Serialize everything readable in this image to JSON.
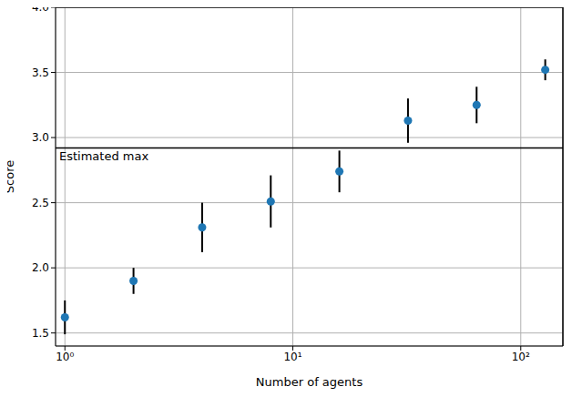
{
  "chart_data": {
    "type": "scatter",
    "x_label": "Number of agents",
    "y_label": "Score",
    "x": [
      1,
      2,
      4,
      8,
      16,
      32,
      64,
      128
    ],
    "values": [
      1.62,
      1.9,
      2.31,
      2.51,
      2.74,
      3.13,
      3.25,
      3.52
    ],
    "errors": [
      0.13,
      0.1,
      0.19,
      0.2,
      0.16,
      0.17,
      0.14,
      0.08
    ],
    "color": "#1f77b4",
    "marker": "circle",
    "log": "x",
    "grid": true,
    "xlim": [
      0.91,
      153
    ],
    "xticks": [
      {
        "value": 1,
        "label": "10⁰"
      },
      {
        "value": 10,
        "label": "10¹"
      },
      {
        "value": 100,
        "label": "10²"
      }
    ],
    "ylim": [
      1.4,
      4.0
    ],
    "yticks": [
      {
        "value": 1.5,
        "label": "1.5"
      },
      {
        "value": 2,
        "label": "2.0"
      },
      {
        "value": 2.5,
        "label": "2.5"
      },
      {
        "value": 3,
        "label": "3.0"
      },
      {
        "value": 3.5,
        "label": "3.5"
      },
      {
        "value": 4,
        "label": "4.0"
      }
    ],
    "annotations": [
      {
        "text": "Estimated max",
        "y": 2.92
      }
    ]
  }
}
